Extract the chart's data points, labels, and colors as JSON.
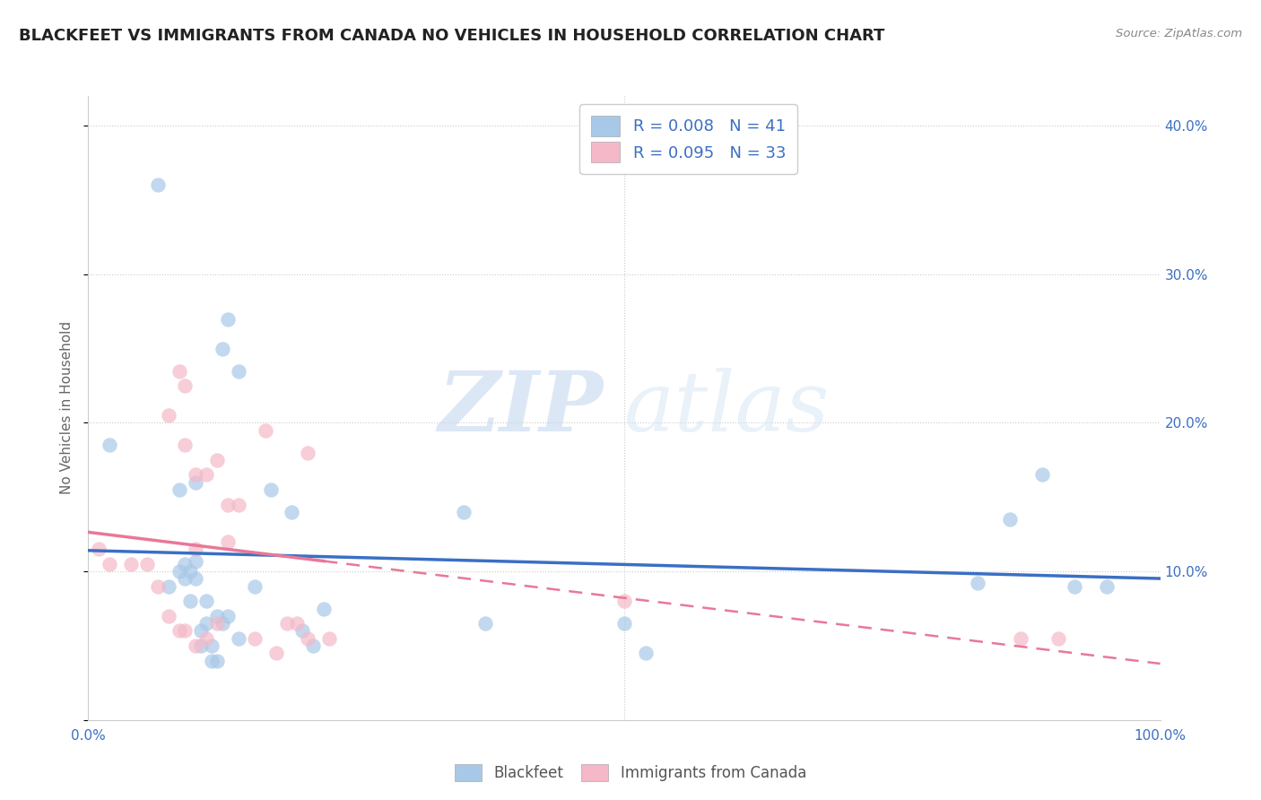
{
  "title": "BLACKFEET VS IMMIGRANTS FROM CANADA NO VEHICLES IN HOUSEHOLD CORRELATION CHART",
  "source_text": "Source: ZipAtlas.com",
  "ylabel": "No Vehicles in Household",
  "xlim": [
    0.0,
    1.0
  ],
  "ylim": [
    0.0,
    0.42
  ],
  "xticks": [
    0.0,
    0.5,
    1.0
  ],
  "xticklabels": [
    "0.0%",
    "",
    "100.0%"
  ],
  "yticks_right": [
    0.0,
    0.1,
    0.2,
    0.3,
    0.4
  ],
  "yticklabels_right": [
    "",
    "10.0%",
    "20.0%",
    "30.0%",
    "40.0%"
  ],
  "watermark_zip": "ZIP",
  "watermark_atlas": "atlas",
  "color_blue": "#a8c8e8",
  "color_pink": "#f4b8c8",
  "color_blue_line": "#3a6fc4",
  "color_pink_line": "#e87898",
  "color_text_blue": "#3a6fc4",
  "title_fontsize": 13,
  "label_fontsize": 11,
  "tick_fontsize": 11,
  "blackfeet_x": [
    0.02,
    0.065,
    0.075,
    0.085,
    0.085,
    0.09,
    0.09,
    0.095,
    0.095,
    0.1,
    0.1,
    0.1,
    0.105,
    0.105,
    0.11,
    0.11,
    0.115,
    0.115,
    0.12,
    0.12,
    0.125,
    0.125,
    0.13,
    0.13,
    0.14,
    0.14,
    0.155,
    0.17,
    0.19,
    0.2,
    0.21,
    0.22,
    0.35,
    0.37,
    0.5,
    0.52,
    0.83,
    0.86,
    0.89,
    0.92,
    0.95
  ],
  "blackfeet_y": [
    0.185,
    0.36,
    0.09,
    0.1,
    0.155,
    0.095,
    0.105,
    0.08,
    0.1,
    0.095,
    0.107,
    0.16,
    0.05,
    0.06,
    0.065,
    0.08,
    0.04,
    0.05,
    0.07,
    0.04,
    0.065,
    0.25,
    0.07,
    0.27,
    0.055,
    0.235,
    0.09,
    0.155,
    0.14,
    0.06,
    0.05,
    0.075,
    0.14,
    0.065,
    0.065,
    0.045,
    0.092,
    0.135,
    0.165,
    0.09,
    0.09
  ],
  "canada_x": [
    0.01,
    0.02,
    0.04,
    0.055,
    0.065,
    0.075,
    0.075,
    0.085,
    0.085,
    0.09,
    0.09,
    0.09,
    0.1,
    0.1,
    0.1,
    0.11,
    0.11,
    0.12,
    0.12,
    0.13,
    0.13,
    0.14,
    0.155,
    0.165,
    0.175,
    0.185,
    0.195,
    0.205,
    0.205,
    0.225,
    0.5,
    0.87,
    0.905
  ],
  "canada_y": [
    0.115,
    0.105,
    0.105,
    0.105,
    0.09,
    0.07,
    0.205,
    0.06,
    0.235,
    0.06,
    0.185,
    0.225,
    0.05,
    0.115,
    0.165,
    0.055,
    0.165,
    0.065,
    0.175,
    0.12,
    0.145,
    0.145,
    0.055,
    0.195,
    0.045,
    0.065,
    0.065,
    0.055,
    0.18,
    0.055,
    0.08,
    0.055,
    0.055
  ]
}
